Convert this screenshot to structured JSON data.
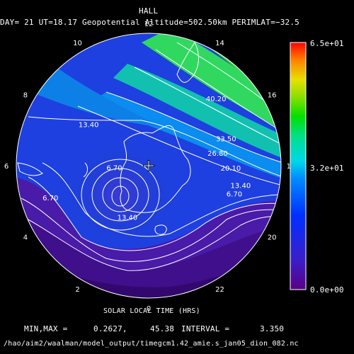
{
  "title": "HALL",
  "subtitle": "DAY= 21 UT=18.17 Geopotential Altitude=502.50km PERIMLAT=−32.5",
  "xlabel": "SOLAR LOCAL TIME (HRS)",
  "stats": {
    "minmax_label": "MIN,MAX =",
    "min": "0.2627,",
    "max": "45.38",
    "interval_label": "INTERVAL =",
    "interval": "3.350"
  },
  "footer": "/hao/aim2/waalman/model_output/timegcm1.42_amie.s_jan05_dion_082.nc",
  "colorbar": {
    "max_label": "6.5e+01",
    "mid_label": "3.2e+01",
    "min_label": "0.0e+00"
  },
  "colors": {
    "background": "#000000",
    "coast": "#ffffff",
    "contour": "#ffffff"
  },
  "chart_data": {
    "type": "heatmap",
    "projection": "polar, solar local time around rim",
    "scalar_range": [
      0,
      65
    ],
    "data_min": 0.2627,
    "data_max": 45.38,
    "contour_interval": 3.35,
    "hours": [
      "12",
      "14",
      "16",
      "18",
      "20",
      "22",
      "0",
      "2",
      "4",
      "6",
      "8",
      "10"
    ],
    "hour_values": [
      12,
      14,
      16,
      18,
      20,
      22,
      0,
      2,
      4,
      6,
      8,
      10
    ],
    "contour_labels": [
      {
        "text": "40.20",
        "hour": 15.0,
        "r": 0.72
      },
      {
        "text": "33.50",
        "hour": 16.7,
        "r": 0.62
      },
      {
        "text": "26.80",
        "hour": 17.3,
        "r": 0.53
      },
      {
        "text": "20.10",
        "hour": 18.1,
        "r": 0.62
      },
      {
        "text": "13.40",
        "hour": 18.8,
        "r": 0.71
      },
      {
        "text": "6.70",
        "hour": 19.2,
        "r": 0.68
      },
      {
        "text": "13.40",
        "hour": 8.3,
        "r": 0.55
      },
      {
        "text": "6.70",
        "hour": 4.8,
        "r": 0.78
      },
      {
        "text": "6.70",
        "hour": 5.8,
        "r": 0.26
      },
      {
        "text": "13.40",
        "hour": 1.5,
        "r": 0.42
      }
    ],
    "pole_marker": "plus"
  }
}
